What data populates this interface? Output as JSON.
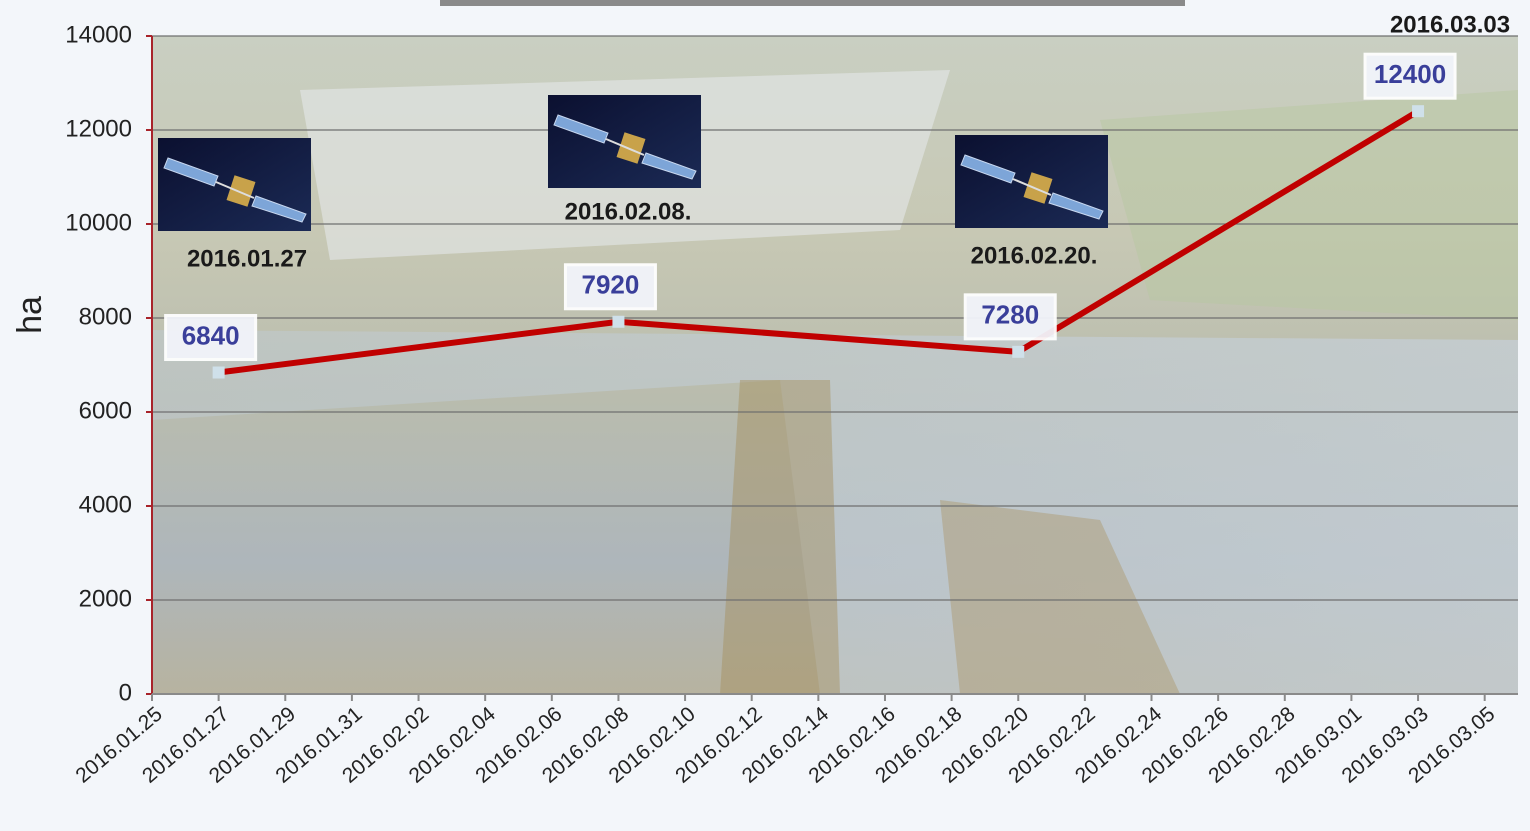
{
  "chart_data": {
    "type": "line",
    "y_label": "ha",
    "x": [
      "2016.01.27",
      "2016.02.08",
      "2016.02.20",
      "2016.03.03"
    ],
    "series": [
      {
        "color": "#c00000",
        "values": [
          6840,
          7920,
          7280,
          12400
        ]
      }
    ],
    "annotations": [
      "2016.01.27",
      "2016.02.08.",
      "2016.02.20.",
      "2016.03.03"
    ],
    "xlim": [
      "2016.01.25",
      "2016.03.06"
    ],
    "xticks": [
      "2016.01.25",
      "2016.01.27",
      "2016.01.29",
      "2016.01.31",
      "2016.02.02",
      "2016.02.04",
      "2016.02.06",
      "2016.02.08",
      "2016.02.10",
      "2016.02.12",
      "2016.02.14",
      "2016.02.16",
      "2016.02.18",
      "2016.02.20",
      "2016.02.22",
      "2016.02.24",
      "2016.02.26",
      "2016.02.28",
      "2016.03.01",
      "2016.03.03",
      "2016.03.05"
    ],
    "ylim": [
      0,
      14000
    ],
    "yticks": [
      0,
      2000,
      4000,
      6000,
      8000,
      10000,
      12000,
      14000
    ],
    "grid": true
  }
}
